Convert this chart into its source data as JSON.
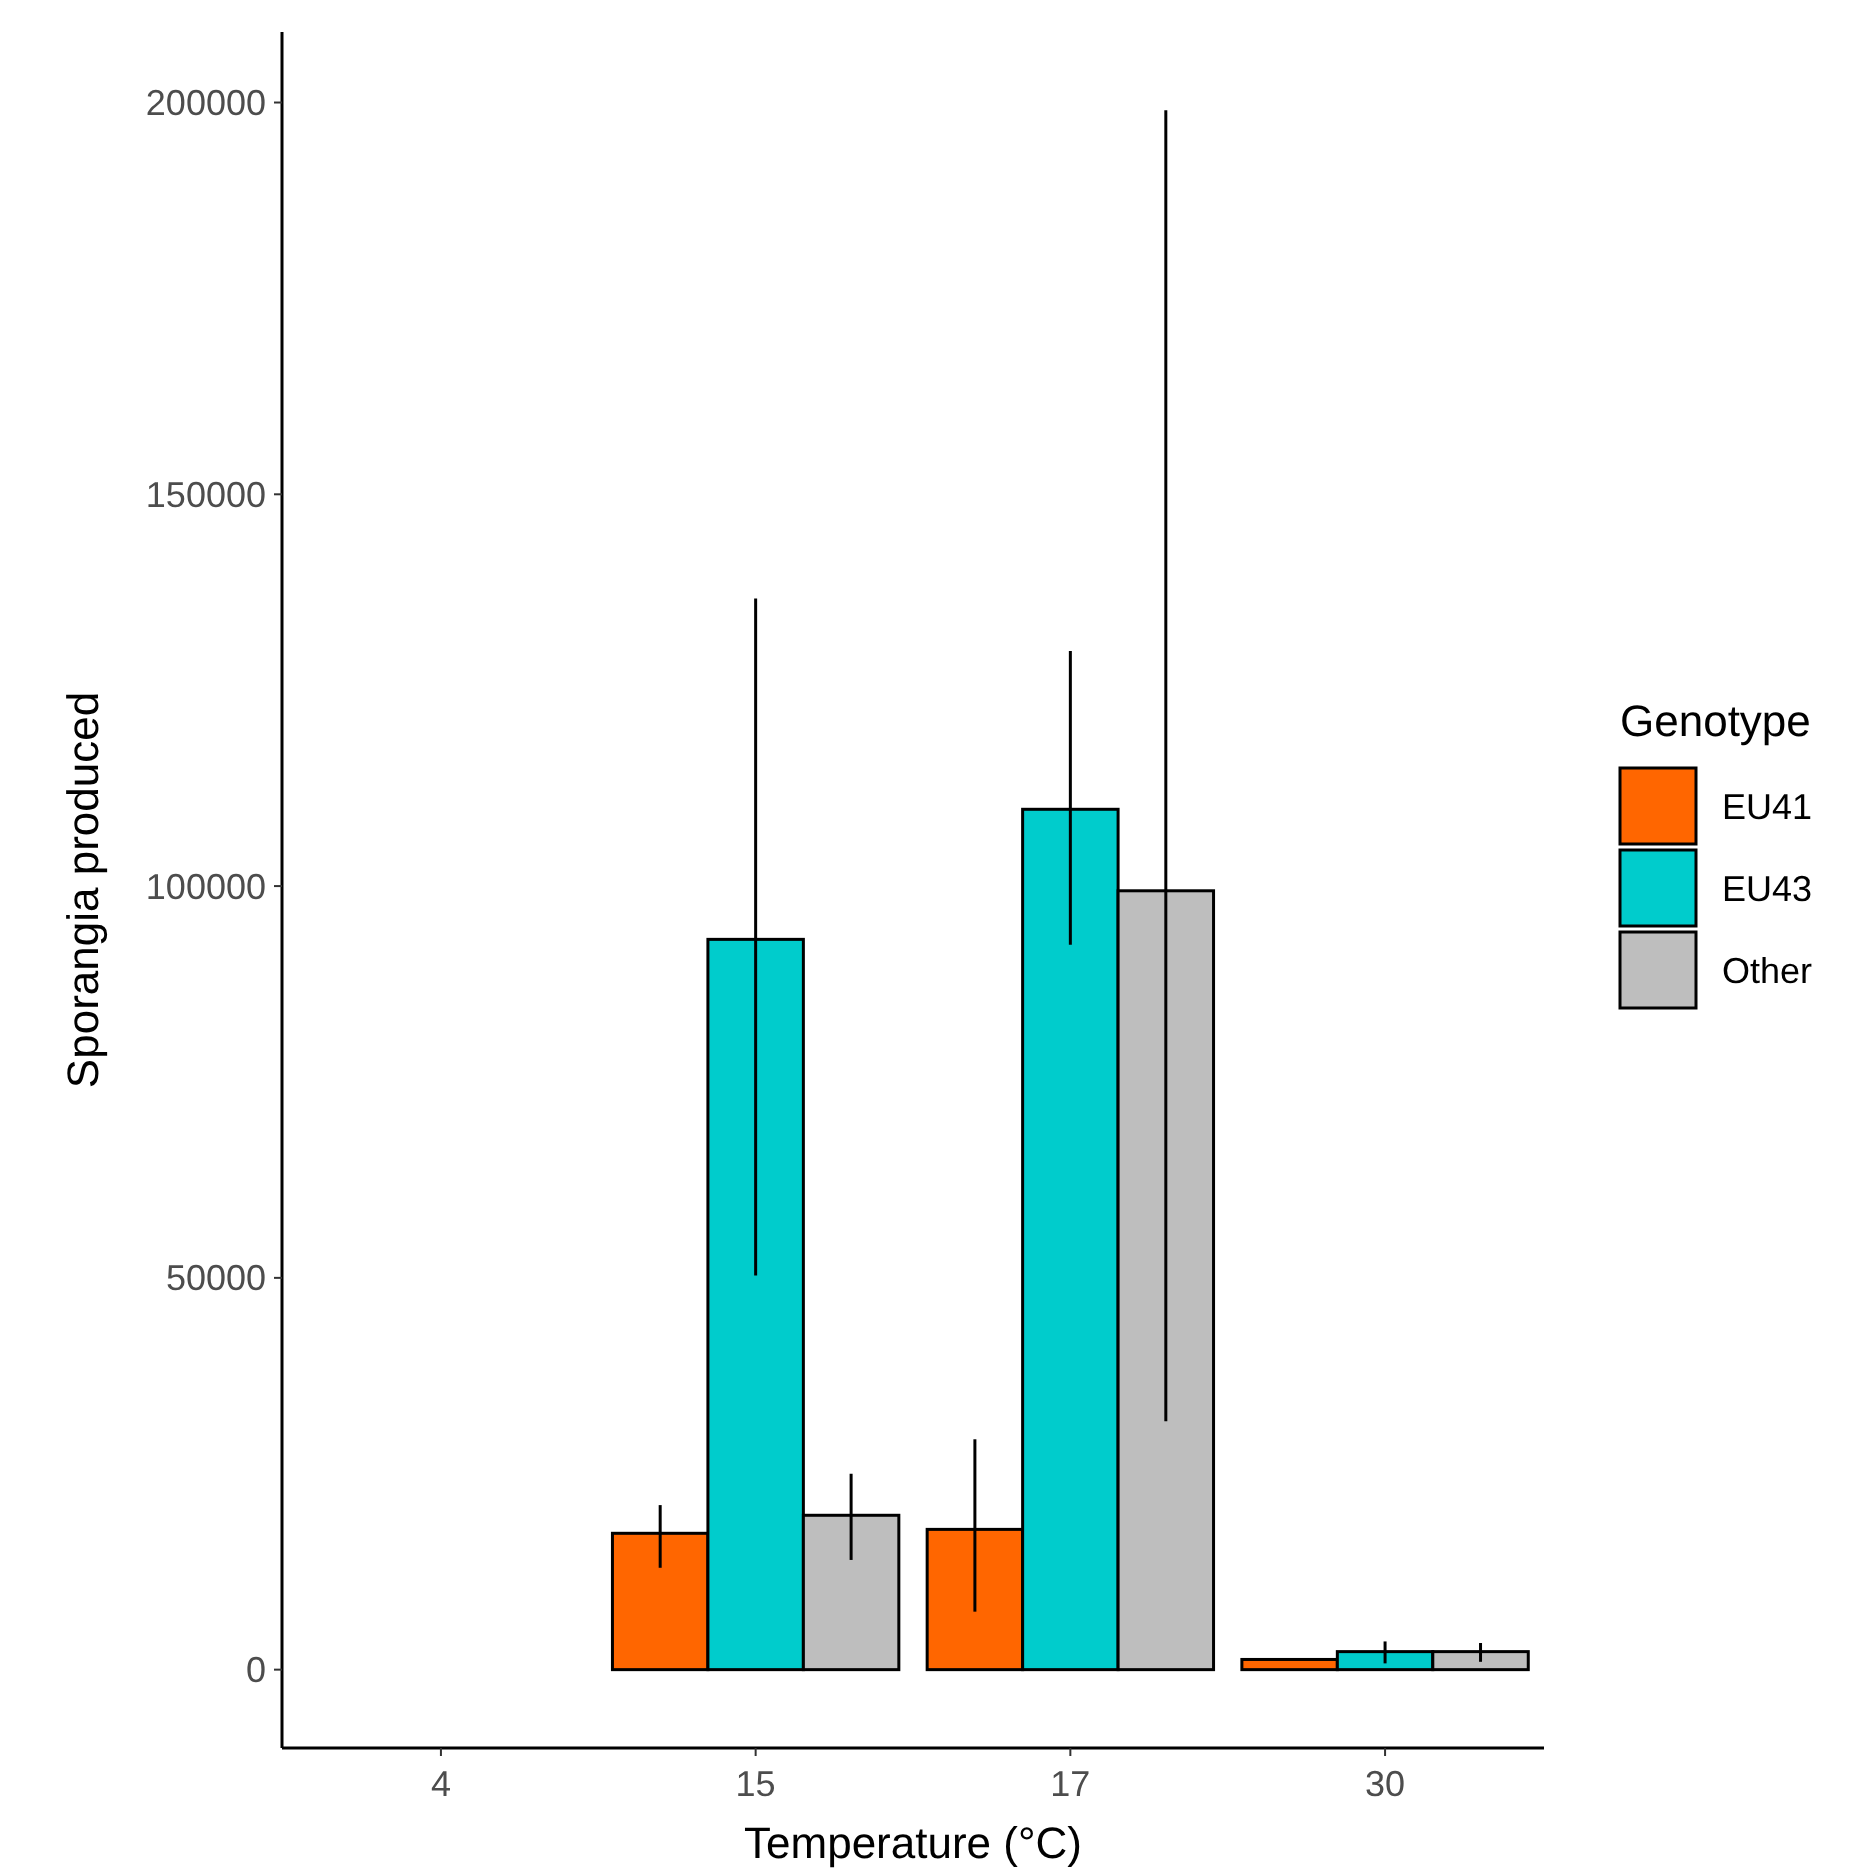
{
  "chart_data": {
    "type": "bar",
    "xlabel": "Temperature (°C)",
    "ylabel": "Sporangia produced",
    "legend_title": "Genotype",
    "legend": "right",
    "grid": false,
    "categories": [
      "4",
      "15",
      "17",
      "30"
    ],
    "ylim": [
      -10000,
      209000
    ],
    "yticks": [
      0,
      50000,
      100000,
      150000,
      200000
    ],
    "series": [
      {
        "name": "EU41",
        "color": "#ff6600",
        "values": [
          0,
          17400,
          17900,
          1300
        ],
        "errors": [
          null,
          [
            13000,
            21000
          ],
          [
            7400,
            29400
          ],
          null
        ]
      },
      {
        "name": "EU43",
        "color": "#00cccc",
        "values": [
          0,
          93200,
          109800,
          2300
        ],
        "errors": [
          null,
          [
            50300,
            136700
          ],
          [
            92500,
            130000
          ],
          [
            800,
            3600
          ]
        ]
      },
      {
        "name": "Other",
        "color": "#bebebe",
        "values": [
          0,
          19700,
          99400,
          2300
        ],
        "errors": [
          null,
          [
            14000,
            25000
          ],
          [
            31700,
            199000
          ],
          [
            1000,
            3400
          ]
        ]
      }
    ]
  }
}
